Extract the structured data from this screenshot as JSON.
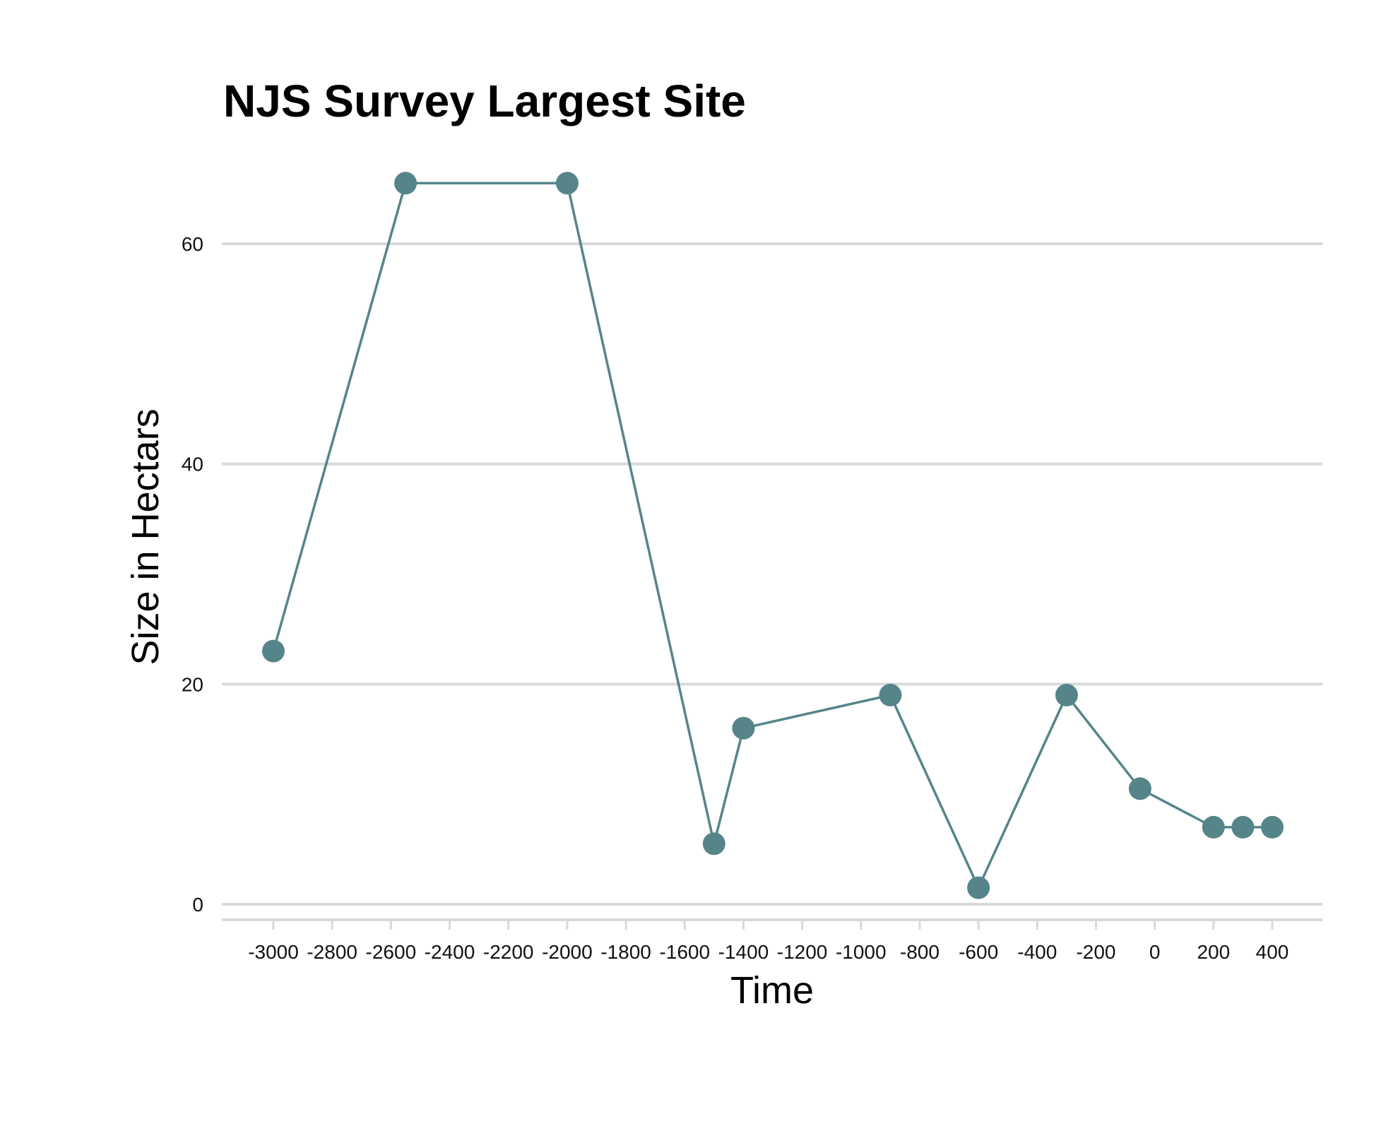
{
  "chart_data": {
    "type": "line",
    "title": "NJS Survey Largest Site",
    "xlabel": "Time",
    "ylabel": "Size in Hectars",
    "xlim": [
      -3170,
      570
    ],
    "ylim": [
      -1.7,
      68
    ],
    "x_ticks": [
      -3000,
      -2800,
      -2600,
      -2400,
      -2200,
      -2000,
      -1800,
      -1600,
      -1400,
      -1200,
      -1000,
      -800,
      -600,
      -400,
      -200,
      0,
      200,
      400
    ],
    "x_tick_labels": [
      "-3000",
      "-2800",
      "-2600",
      "-2400",
      "-2200",
      "-2000",
      "-1800",
      "-1600",
      "-1400",
      "-1200",
      "-1000",
      "-800",
      "-600",
      "-400",
      "-200",
      "0",
      "200",
      "400"
    ],
    "y_ticks": [
      0,
      20,
      40,
      60
    ],
    "y_tick_labels": [
      "0",
      "20",
      "40",
      "60"
    ],
    "grid": "horizontal",
    "legend": "none",
    "color": "#558589",
    "series": [
      {
        "x": [
          -3000,
          -2550,
          -2000,
          -1500,
          -1400,
          -900,
          -600,
          -300,
          -50,
          200,
          300,
          400
        ],
        "y": [
          23,
          65.5,
          65.5,
          5.5,
          16,
          19,
          1.5,
          19,
          10.5,
          7,
          7,
          7
        ]
      }
    ]
  }
}
